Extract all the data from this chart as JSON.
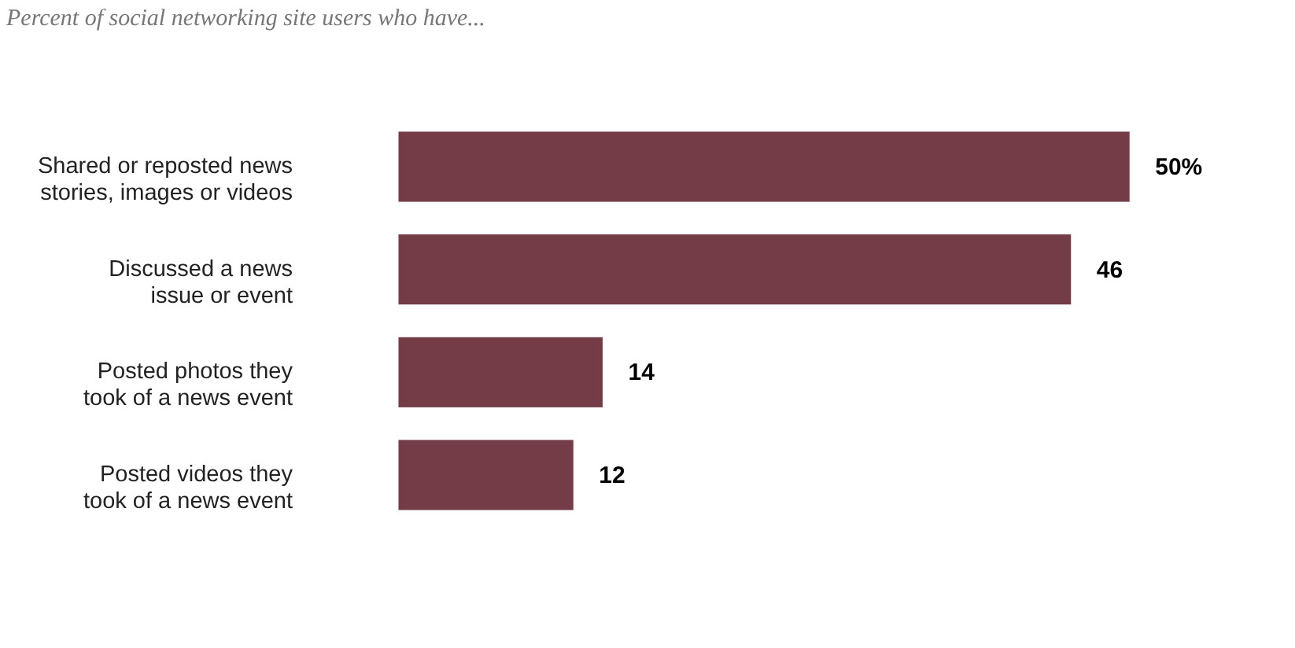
{
  "chart_data": {
    "type": "bar",
    "orientation": "horizontal",
    "title": "Percent of social networking site users who have...",
    "categories": [
      "Shared or reposted news stories, images or videos",
      "Discussed a news issue or event",
      "Posted photos they took of a news event",
      "Posted videos they took of a news event"
    ],
    "values": [
      50,
      46,
      14,
      12
    ],
    "value_labels": [
      "50%",
      "46",
      "14",
      "12"
    ],
    "color": "#733c46"
  }
}
